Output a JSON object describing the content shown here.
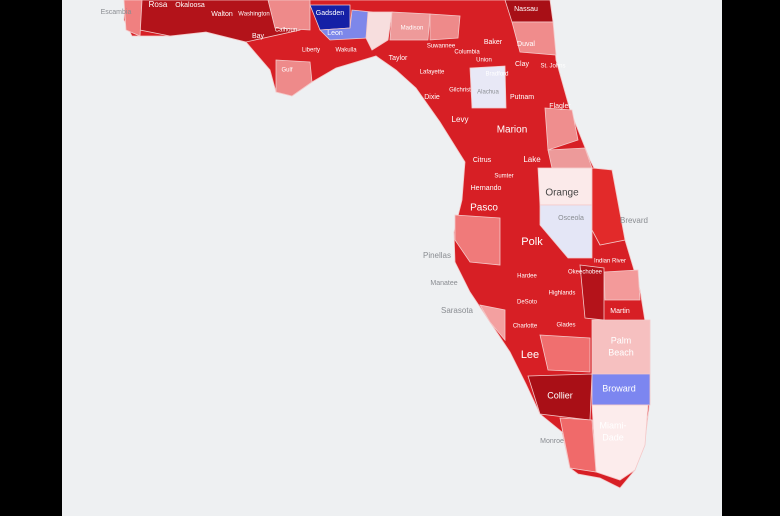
{
  "map": {
    "counties": [
      {
        "label": "Escambia"
      },
      {
        "label": "Rosa"
      },
      {
        "label": "Okaloosa"
      },
      {
        "label": "Walton"
      },
      {
        "label": "Washington"
      },
      {
        "label": "Gadsden"
      },
      {
        "label": "Leon"
      },
      {
        "label": "Calhoun"
      },
      {
        "label": "Bay"
      },
      {
        "label": "Liberty"
      },
      {
        "label": "Wakulla"
      },
      {
        "label": "Gulf"
      },
      {
        "label": "Taylor"
      },
      {
        "label": "Madison"
      },
      {
        "label": "Suwannee"
      },
      {
        "label": "Columbia"
      },
      {
        "label": "Baker"
      },
      {
        "label": "Nassau"
      },
      {
        "label": "Duval"
      },
      {
        "label": "Clay"
      },
      {
        "label": "St. Johns"
      },
      {
        "label": "Lafayette"
      },
      {
        "label": "Dixie"
      },
      {
        "label": "Gilchrist"
      },
      {
        "label": "Union"
      },
      {
        "label": "Bradford"
      },
      {
        "label": "Alachua"
      },
      {
        "label": "Putnam"
      },
      {
        "label": "Flagler"
      },
      {
        "label": "Levy"
      },
      {
        "label": "Marion"
      },
      {
        "label": "Citrus"
      },
      {
        "label": "Lake"
      },
      {
        "label": "Sumter"
      },
      {
        "label": "Hernando"
      },
      {
        "label": "Orange"
      },
      {
        "label": "Pasco"
      },
      {
        "label": "Osceola"
      },
      {
        "label": "Brevard"
      },
      {
        "label": "Polk"
      },
      {
        "label": "Pinellas"
      },
      {
        "label": "Indian River"
      },
      {
        "label": "Manatee"
      },
      {
        "label": "Hardee"
      },
      {
        "label": "Okeechobee"
      },
      {
        "label": "Highlands"
      },
      {
        "label": "Sarasota"
      },
      {
        "label": "DeSoto"
      },
      {
        "label": "Martin"
      },
      {
        "label": "Charlotte"
      },
      {
        "label": "Glades"
      },
      {
        "label": "Palm Beach"
      },
      {
        "label": "Lee"
      },
      {
        "label": "Collier"
      },
      {
        "label": "Broward"
      },
      {
        "label": "Monroe"
      },
      {
        "label": "Miami-Dade"
      }
    ]
  }
}
